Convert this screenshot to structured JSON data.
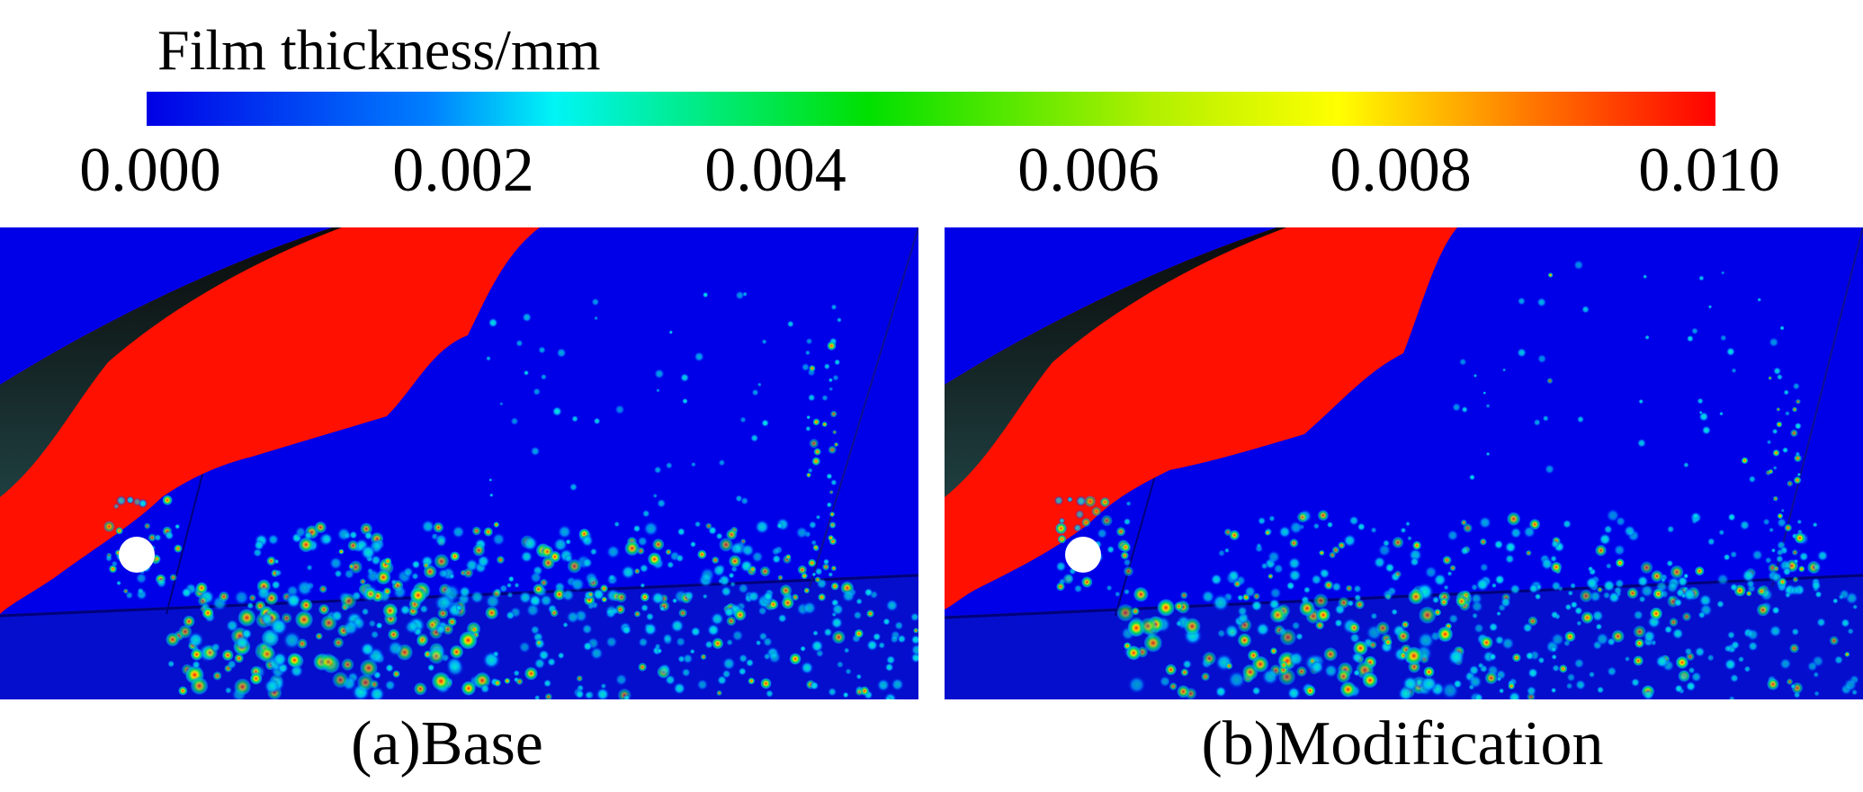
{
  "legend": {
    "title": "Film thickness/mm",
    "min": 0.0,
    "max": 0.01,
    "ticks": [
      "0.000",
      "0.002",
      "0.004",
      "0.006",
      "0.008",
      "0.010"
    ],
    "colormap": [
      "#0000e6",
      "#00a0ff",
      "#00f0f0",
      "#00e000",
      "#ffff00",
      "#ff8000",
      "#ff0000"
    ]
  },
  "panels": [
    {
      "id": "a",
      "caption": "(a)Base"
    },
    {
      "id": "b",
      "caption": "(b)Modification"
    }
  ]
}
